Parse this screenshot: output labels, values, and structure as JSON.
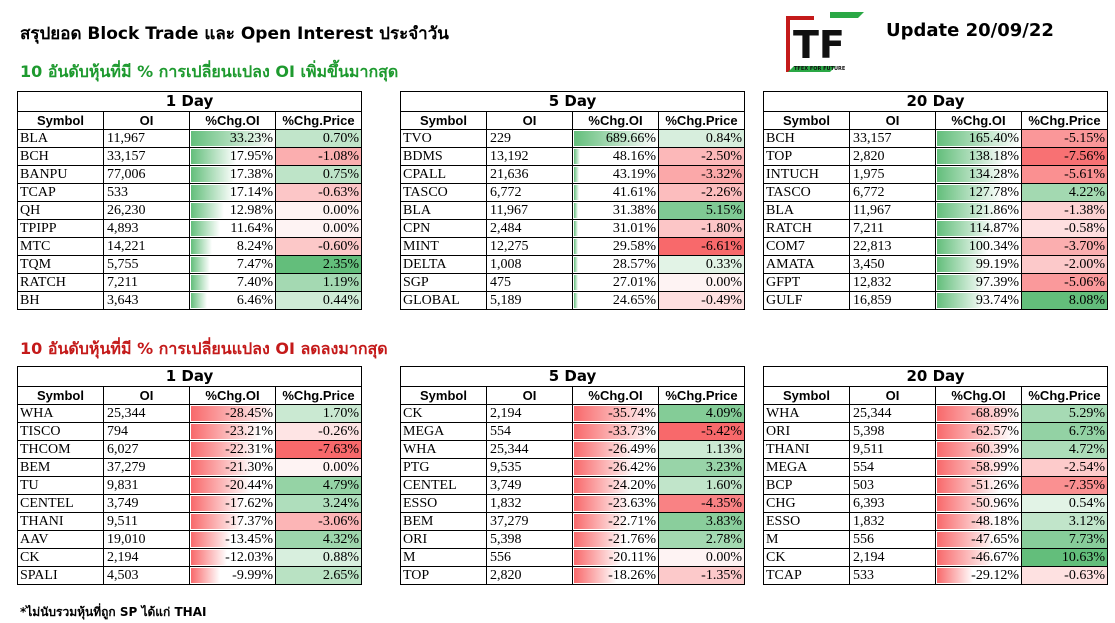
{
  "header": {
    "title": "สรุปยอด Block Trade และ Open Interest ประจำวัน",
    "update": "Update 20/09/22",
    "logo_text": "TF",
    "logo_sub": "TFEX FOR FUTURE"
  },
  "sections": {
    "top": "10 อันดับหุ้นที่มี % การเปลี่ยนแปลง OI เพิ่มขึ้นมากสุด",
    "bottom": "10 อันดับหุ้นที่มี % การเปลี่ยนแปลง OI ลดลงมากสุด"
  },
  "footnote": "*ไม่นับรวมหุ้นที่ถูก SP ได้แก่ THAI",
  "colors": {
    "green_bar": "#63be7b",
    "red_bar": "#f8696b",
    "pos_cell": "#63be7b",
    "neg_cell": "#f8696b"
  },
  "columns": [
    "Symbol",
    "OI",
    "%Chg.OI",
    "%Chg.Price"
  ],
  "tables": [
    {
      "period": "1 Day",
      "rows": [
        {
          "sym": "BLA",
          "oi": "11,967",
          "chg_oi": "33.23%",
          "chg_price": "0.70%",
          "oi_pct": 33.23,
          "price_pct": 0.7
        },
        {
          "sym": "BCH",
          "oi": "33,157",
          "chg_oi": "17.95%",
          "chg_price": "-1.08%",
          "oi_pct": 17.95,
          "price_pct": -1.08
        },
        {
          "sym": "BANPU",
          "oi": "77,006",
          "chg_oi": "17.38%",
          "chg_price": "0.75%",
          "oi_pct": 17.38,
          "price_pct": 0.75
        },
        {
          "sym": "TCAP",
          "oi": "533",
          "chg_oi": "17.14%",
          "chg_price": "-0.63%",
          "oi_pct": 17.14,
          "price_pct": -0.63
        },
        {
          "sym": "QH",
          "oi": "26,230",
          "chg_oi": "12.98%",
          "chg_price": "0.00%",
          "oi_pct": 12.98,
          "price_pct": 0
        },
        {
          "sym": "TPIPP",
          "oi": "4,893",
          "chg_oi": "11.64%",
          "chg_price": "0.00%",
          "oi_pct": 11.64,
          "price_pct": 0
        },
        {
          "sym": "MTC",
          "oi": "14,221",
          "chg_oi": "8.24%",
          "chg_price": "-0.60%",
          "oi_pct": 8.24,
          "price_pct": -0.6
        },
        {
          "sym": "TQM",
          "oi": "5,755",
          "chg_oi": "7.47%",
          "chg_price": "2.35%",
          "oi_pct": 7.47,
          "price_pct": 2.35
        },
        {
          "sym": "RATCH",
          "oi": "7,211",
          "chg_oi": "7.40%",
          "chg_price": "1.19%",
          "oi_pct": 7.4,
          "price_pct": 1.19
        },
        {
          "sym": "BH",
          "oi": "3,643",
          "chg_oi": "6.46%",
          "chg_price": "0.44%",
          "oi_pct": 6.46,
          "price_pct": 0.44
        }
      ]
    },
    {
      "period": "5 Day",
      "rows": [
        {
          "sym": "TVO",
          "oi": "229",
          "chg_oi": "689.66%",
          "chg_price": "0.84%",
          "oi_pct": 689.66,
          "price_pct": 0.84
        },
        {
          "sym": "BDMS",
          "oi": "13,192",
          "chg_oi": "48.16%",
          "chg_price": "-2.50%",
          "oi_pct": 48.16,
          "price_pct": -2.5
        },
        {
          "sym": "CPALL",
          "oi": "21,636",
          "chg_oi": "43.19%",
          "chg_price": "-3.32%",
          "oi_pct": 43.19,
          "price_pct": -3.32
        },
        {
          "sym": "TASCO",
          "oi": "6,772",
          "chg_oi": "41.61%",
          "chg_price": "-2.26%",
          "oi_pct": 41.61,
          "price_pct": -2.26
        },
        {
          "sym": "BLA",
          "oi": "11,967",
          "chg_oi": "31.38%",
          "chg_price": "5.15%",
          "oi_pct": 31.38,
          "price_pct": 5.15
        },
        {
          "sym": "CPN",
          "oi": "2,484",
          "chg_oi": "31.01%",
          "chg_price": "-1.80%",
          "oi_pct": 31.01,
          "price_pct": -1.8
        },
        {
          "sym": "MINT",
          "oi": "12,275",
          "chg_oi": "29.58%",
          "chg_price": "-6.61%",
          "oi_pct": 29.58,
          "price_pct": -6.61
        },
        {
          "sym": "DELTA",
          "oi": "1,008",
          "chg_oi": "28.57%",
          "chg_price": "0.33%",
          "oi_pct": 28.57,
          "price_pct": 0.33
        },
        {
          "sym": "SGP",
          "oi": "475",
          "chg_oi": "27.01%",
          "chg_price": "0.00%",
          "oi_pct": 27.01,
          "price_pct": 0
        },
        {
          "sym": "GLOBAL",
          "oi": "5,189",
          "chg_oi": "24.65%",
          "chg_price": "-0.49%",
          "oi_pct": 24.65,
          "price_pct": -0.49
        }
      ]
    },
    {
      "period": "20 Day",
      "rows": [
        {
          "sym": "BCH",
          "oi": "33,157",
          "chg_oi": "165.40%",
          "chg_price": "-5.15%",
          "oi_pct": 165.4,
          "price_pct": -5.15
        },
        {
          "sym": "TOP",
          "oi": "2,820",
          "chg_oi": "138.18%",
          "chg_price": "-7.56%",
          "oi_pct": 138.18,
          "price_pct": -7.56
        },
        {
          "sym": "INTUCH",
          "oi": "1,975",
          "chg_oi": "134.28%",
          "chg_price": "-5.61%",
          "oi_pct": 134.28,
          "price_pct": -5.61
        },
        {
          "sym": "TASCO",
          "oi": "6,772",
          "chg_oi": "127.78%",
          "chg_price": "4.22%",
          "oi_pct": 127.78,
          "price_pct": 4.22
        },
        {
          "sym": "BLA",
          "oi": "11,967",
          "chg_oi": "121.86%",
          "chg_price": "-1.38%",
          "oi_pct": 121.86,
          "price_pct": -1.38
        },
        {
          "sym": "RATCH",
          "oi": "7,211",
          "chg_oi": "114.87%",
          "chg_price": "-0.58%",
          "oi_pct": 114.87,
          "price_pct": -0.58
        },
        {
          "sym": "COM7",
          "oi": "22,813",
          "chg_oi": "100.34%",
          "chg_price": "-3.70%",
          "oi_pct": 100.34,
          "price_pct": -3.7
        },
        {
          "sym": "AMATA",
          "oi": "3,450",
          "chg_oi": "99.19%",
          "chg_price": "-2.00%",
          "oi_pct": 99.19,
          "price_pct": -2.0
        },
        {
          "sym": "GFPT",
          "oi": "12,832",
          "chg_oi": "97.39%",
          "chg_price": "-5.06%",
          "oi_pct": 97.39,
          "price_pct": -5.06
        },
        {
          "sym": "GULF",
          "oi": "16,859",
          "chg_oi": "93.74%",
          "chg_price": "8.08%",
          "oi_pct": 93.74,
          "price_pct": 8.08
        }
      ]
    },
    {
      "period": "1 Day",
      "rows": [
        {
          "sym": "WHA",
          "oi": "25,344",
          "chg_oi": "-28.45%",
          "chg_price": "1.70%",
          "oi_pct": -28.45,
          "price_pct": 1.7
        },
        {
          "sym": "TISCO",
          "oi": "794",
          "chg_oi": "-23.21%",
          "chg_price": "-0.26%",
          "oi_pct": -23.21,
          "price_pct": -0.26
        },
        {
          "sym": "THCOM",
          "oi": "6,027",
          "chg_oi": "-22.31%",
          "chg_price": "-7.63%",
          "oi_pct": -22.31,
          "price_pct": -7.63
        },
        {
          "sym": "BEM",
          "oi": "37,279",
          "chg_oi": "-21.30%",
          "chg_price": "0.00%",
          "oi_pct": -21.3,
          "price_pct": 0
        },
        {
          "sym": "TU",
          "oi": "9,831",
          "chg_oi": "-20.44%",
          "chg_price": "4.79%",
          "oi_pct": -20.44,
          "price_pct": 4.79
        },
        {
          "sym": "CENTEL",
          "oi": "3,749",
          "chg_oi": "-17.62%",
          "chg_price": "3.24%",
          "oi_pct": -17.62,
          "price_pct": 3.24
        },
        {
          "sym": "THANI",
          "oi": "9,511",
          "chg_oi": "-17.37%",
          "chg_price": "-3.06%",
          "oi_pct": -17.37,
          "price_pct": -3.06
        },
        {
          "sym": "AAV",
          "oi": "19,010",
          "chg_oi": "-13.45%",
          "chg_price": "4.32%",
          "oi_pct": -13.45,
          "price_pct": 4.32
        },
        {
          "sym": "CK",
          "oi": "2,194",
          "chg_oi": "-12.03%",
          "chg_price": "0.88%",
          "oi_pct": -12.03,
          "price_pct": 0.88
        },
        {
          "sym": "SPALI",
          "oi": "4,503",
          "chg_oi": "-9.99%",
          "chg_price": "2.65%",
          "oi_pct": -9.99,
          "price_pct": 2.65
        }
      ]
    },
    {
      "period": "5 Day",
      "rows": [
        {
          "sym": "CK",
          "oi": "2,194",
          "chg_oi": "-35.74%",
          "chg_price": "4.09%",
          "oi_pct": -35.74,
          "price_pct": 4.09
        },
        {
          "sym": "MEGA",
          "oi": "554",
          "chg_oi": "-33.73%",
          "chg_price": "-5.42%",
          "oi_pct": -33.73,
          "price_pct": -5.42
        },
        {
          "sym": "WHA",
          "oi": "25,344",
          "chg_oi": "-26.49%",
          "chg_price": "1.13%",
          "oi_pct": -26.49,
          "price_pct": 1.13
        },
        {
          "sym": "PTG",
          "oi": "9,535",
          "chg_oi": "-26.42%",
          "chg_price": "3.23%",
          "oi_pct": -26.42,
          "price_pct": 3.23
        },
        {
          "sym": "CENTEL",
          "oi": "3,749",
          "chg_oi": "-24.20%",
          "chg_price": "1.60%",
          "oi_pct": -24.2,
          "price_pct": 1.6
        },
        {
          "sym": "ESSO",
          "oi": "1,832",
          "chg_oi": "-23.63%",
          "chg_price": "-4.35%",
          "oi_pct": -23.63,
          "price_pct": -4.35
        },
        {
          "sym": "BEM",
          "oi": "37,279",
          "chg_oi": "-22.71%",
          "chg_price": "3.83%",
          "oi_pct": -22.71,
          "price_pct": 3.83
        },
        {
          "sym": "ORI",
          "oi": "5,398",
          "chg_oi": "-21.76%",
          "chg_price": "2.78%",
          "oi_pct": -21.76,
          "price_pct": 2.78
        },
        {
          "sym": "M",
          "oi": "556",
          "chg_oi": "-20.11%",
          "chg_price": "0.00%",
          "oi_pct": -20.11,
          "price_pct": 0
        },
        {
          "sym": "TOP",
          "oi": "2,820",
          "chg_oi": "-18.26%",
          "chg_price": "-1.35%",
          "oi_pct": -18.26,
          "price_pct": -1.35
        }
      ]
    },
    {
      "period": "20 Day",
      "rows": [
        {
          "sym": "WHA",
          "oi": "25,344",
          "chg_oi": "-68.89%",
          "chg_price": "5.29%",
          "oi_pct": -68.89,
          "price_pct": 5.29
        },
        {
          "sym": "ORI",
          "oi": "5,398",
          "chg_oi": "-62.57%",
          "chg_price": "6.73%",
          "oi_pct": -62.57,
          "price_pct": 6.73
        },
        {
          "sym": "THANI",
          "oi": "9,511",
          "chg_oi": "-60.39%",
          "chg_price": "4.72%",
          "oi_pct": -60.39,
          "price_pct": 4.72
        },
        {
          "sym": "MEGA",
          "oi": "554",
          "chg_oi": "-58.99%",
          "chg_price": "-2.54%",
          "oi_pct": -58.99,
          "price_pct": -2.54
        },
        {
          "sym": "BCP",
          "oi": "503",
          "chg_oi": "-51.26%",
          "chg_price": "-7.35%",
          "oi_pct": -51.26,
          "price_pct": -7.35
        },
        {
          "sym": "CHG",
          "oi": "6,393",
          "chg_oi": "-50.96%",
          "chg_price": "0.54%",
          "oi_pct": -50.96,
          "price_pct": 0.54
        },
        {
          "sym": "ESSO",
          "oi": "1,832",
          "chg_oi": "-48.18%",
          "chg_price": "3.12%",
          "oi_pct": -48.18,
          "price_pct": 3.12
        },
        {
          "sym": "M",
          "oi": "556",
          "chg_oi": "-47.65%",
          "chg_price": "7.73%",
          "oi_pct": -47.65,
          "price_pct": 7.73
        },
        {
          "sym": "CK",
          "oi": "2,194",
          "chg_oi": "-46.67%",
          "chg_price": "10.63%",
          "oi_pct": -46.67,
          "price_pct": 10.63
        },
        {
          "sym": "TCAP",
          "oi": "533",
          "chg_oi": "-29.12%",
          "chg_price": "-0.63%",
          "oi_pct": -29.12,
          "price_pct": -0.63
        }
      ]
    }
  ]
}
